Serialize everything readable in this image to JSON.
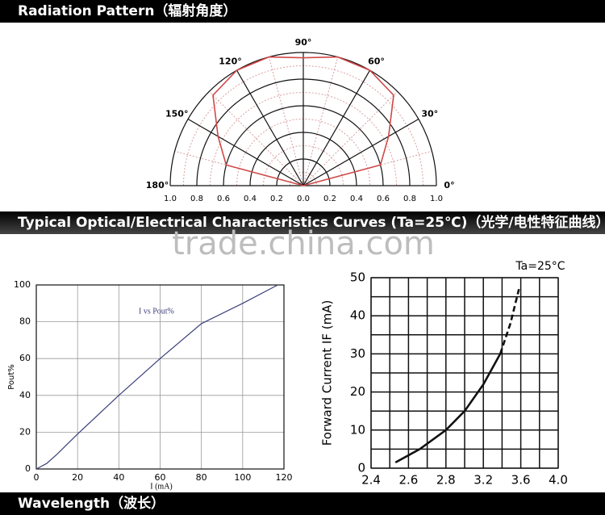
{
  "header": {
    "title": "Radiation Pattern（辐射角度）"
  },
  "section": {
    "title": "Typical Optical/Electrical Characteristics Curves (Ta=25℃)（光学/电性特征曲线）"
  },
  "watermark": "trade.china.com",
  "footer": {
    "title": "Wavelength（波长）"
  },
  "chart_data": [
    {
      "type": "polar",
      "color": "#d04848",
      "x": [
        0,
        15,
        30,
        45,
        60,
        75,
        90,
        105,
        120,
        135,
        150,
        165,
        180
      ],
      "values": [
        0,
        0.6,
        0.74,
        0.96,
        1.0,
        1.0,
        0.96,
        1.0,
        1.0,
        0.96,
        0.74,
        0.6,
        0
      ],
      "angle_ticks": [
        {
          "value": 0,
          "label": "0°"
        },
        {
          "value": 30,
          "label": "30°"
        },
        {
          "value": 60,
          "label": "60°"
        },
        {
          "value": 90,
          "label": "90°"
        },
        {
          "value": 120,
          "label": "120°"
        },
        {
          "value": 150,
          "label": "150°"
        },
        {
          "value": 180,
          "label": "180°"
        }
      ],
      "rlim": [
        0,
        1
      ],
      "rticks": [
        {
          "value": 0,
          "label": "0.0"
        },
        0.2,
        0.4,
        0.6,
        0.8,
        {
          "value": 1,
          "label": "1.0"
        }
      ],
      "grid": true
    },
    {
      "type": "line",
      "xlabel": "I (mA)",
      "ylabel": "Pout%",
      "x": [
        0,
        5,
        10,
        20,
        40,
        48,
        60,
        80,
        100,
        117
      ],
      "series": [
        {
          "name": "I vs Pout%",
          "color": "#3a3f7a",
          "values": [
            0,
            3,
            8,
            19,
            40,
            48,
            60,
            79,
            90,
            100
          ]
        }
      ],
      "xlim": [
        0,
        120
      ],
      "xticks": [
        0,
        20,
        40,
        60,
        80,
        100,
        120
      ],
      "ylim": [
        0,
        100
      ],
      "yticks": [
        0,
        20,
        40,
        60,
        80,
        100
      ],
      "grid": true
    },
    {
      "type": "line",
      "title": "Ta=25°C",
      "ylabel": "Forward Current  IF (mA)",
      "series": [
        {
          "color": "#111111",
          "dash": false,
          "x": [
            2.53,
            2.66,
            2.8,
            3.0,
            3.2,
            3.38
          ],
          "values": [
            1.5,
            5,
            10,
            15,
            22,
            30
          ]
        },
        {
          "color": "#111111",
          "dash": true,
          "x": [
            3.38,
            3.49,
            3.58
          ],
          "values": [
            30,
            38,
            47
          ]
        }
      ],
      "xlim": [
        2.4,
        4.0
      ],
      "xticks": [
        2.4,
        2.6,
        2.8,
        3.2,
        3.6,
        {
          "value": 4.0,
          "label": "4.0"
        }
      ],
      "tick_spaced": true,
      "ylim": [
        0,
        50
      ],
      "yticks": [
        0,
        10,
        20,
        30,
        40,
        50
      ],
      "grid": true,
      "minor_grid": true
    }
  ]
}
